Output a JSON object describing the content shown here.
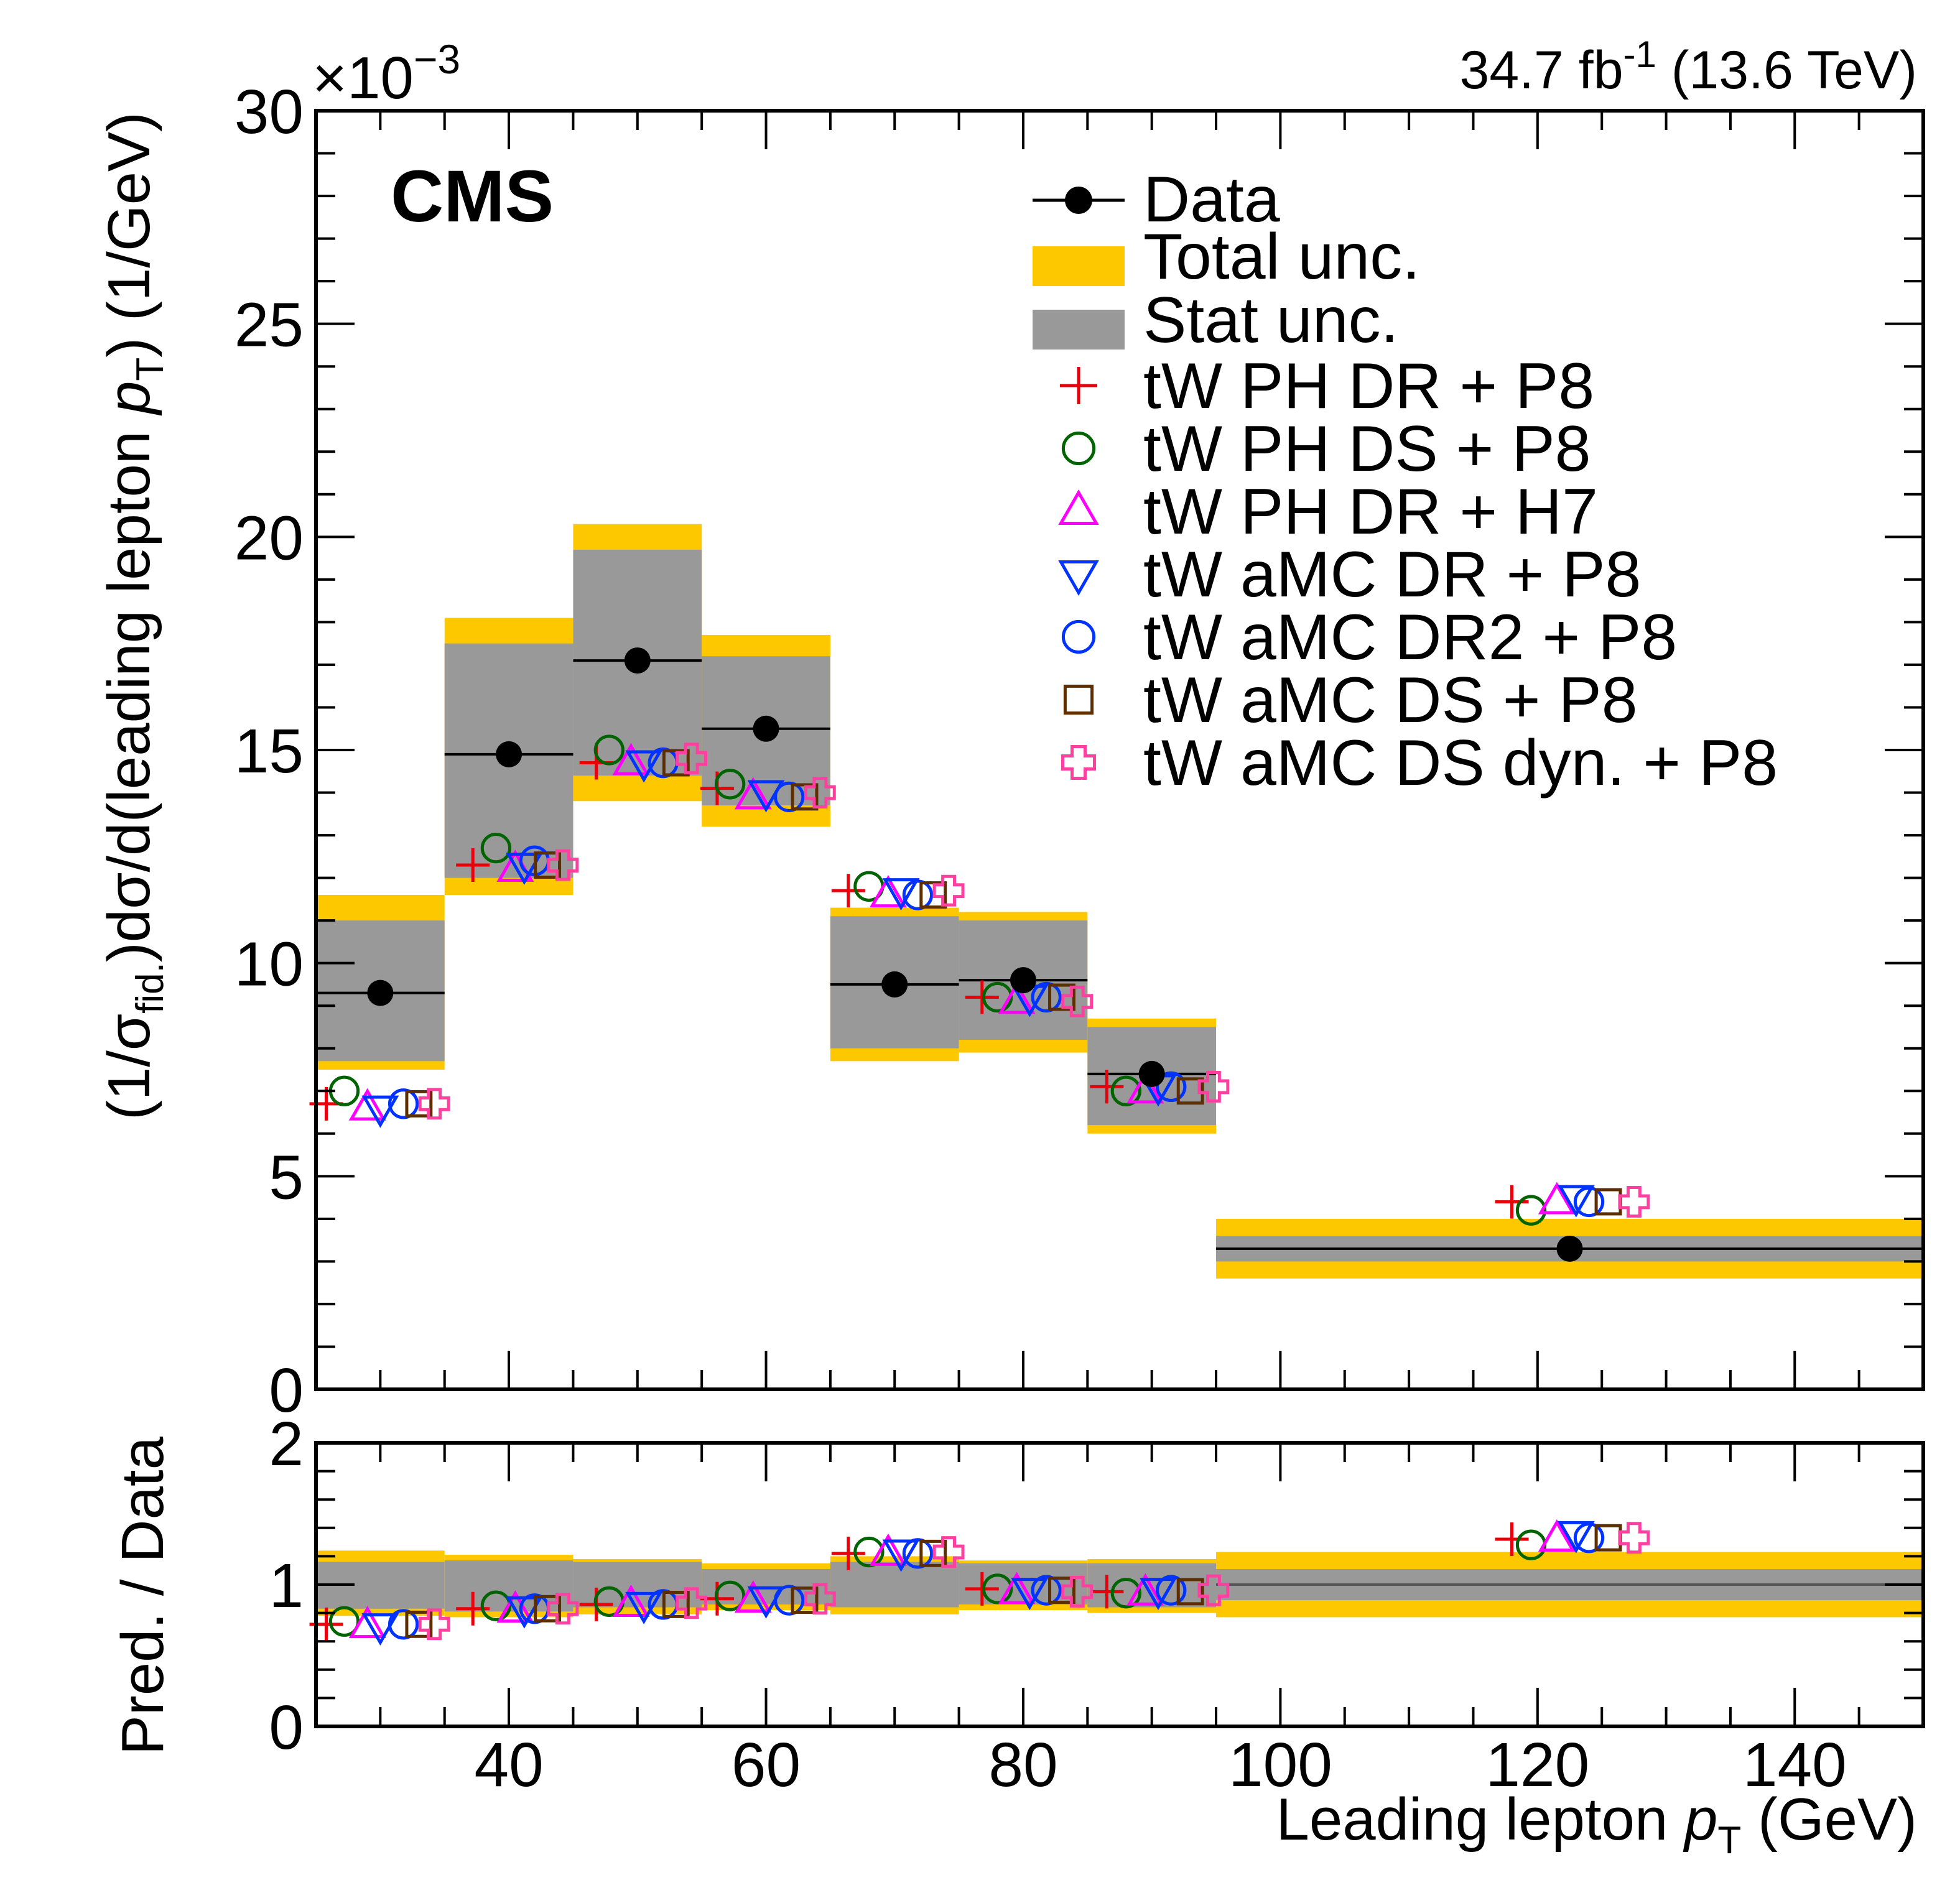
{
  "figure": {
    "experiment_label": "CMS",
    "lumi": {
      "value": "34.7",
      "unit_base": "fb",
      "unit_exp": "-1",
      "energy": "(13.6 TeV)"
    },
    "y_multiplier": {
      "base": "×10",
      "exp": "−3"
    },
    "upper_ylabel": {
      "p1": "(1/σ",
      "sub": "fid.",
      "p2": ")dσ/d(leading lepton ",
      "var": "p",
      "varsub": "T",
      "p3": ") (1/GeV)"
    },
    "lower_ylabel": "Pred. / Data",
    "xlabel": {
      "p1": "Leading lepton ",
      "var": "p",
      "varsub": "T",
      "p2": " (GeV)"
    }
  },
  "legend": {
    "data": "Data",
    "total_unc": "Total unc.",
    "stat_unc": "Stat unc.",
    "total_color": "#fdc800",
    "stat_color": "#999999"
  },
  "chart_data": {
    "type": "histogram-comparison",
    "bin_edges": [
      25,
      35,
      45,
      55,
      65,
      75,
      85,
      95,
      150
    ],
    "xlim": [
      25,
      150
    ],
    "x_ticks": [
      40,
      60,
      80,
      100,
      120,
      140
    ],
    "upper": {
      "ylim": [
        0,
        30
      ],
      "y_ticks": [
        0,
        5,
        10,
        15,
        20,
        25,
        30
      ],
      "y_scale_note": "×10^-3",
      "data": [
        9.3,
        14.9,
        17.1,
        15.5,
        9.5,
        9.6,
        7.4,
        3.3
      ],
      "data_centers": [
        30,
        40,
        50,
        60,
        70,
        80,
        90,
        122.5
      ],
      "total_unc": {
        "low": [
          7.5,
          11.6,
          13.8,
          13.2,
          7.7,
          7.9,
          6.0,
          2.6
        ],
        "high": [
          11.6,
          18.1,
          20.3,
          17.7,
          11.3,
          11.2,
          8.7,
          4.0
        ]
      },
      "stat_unc": {
        "low": [
          7.7,
          12.0,
          14.4,
          13.7,
          8.0,
          8.2,
          6.2,
          3.0
        ],
        "high": [
          11.0,
          17.5,
          19.7,
          17.2,
          11.1,
          11.0,
          8.5,
          3.6
        ]
      },
      "series": [
        {
          "name": "tW PH DR + P8",
          "marker": "plus",
          "color": "#e8000b",
          "x_offsets": [
            -4.2,
            -2.8,
            -3.2,
            -3.8,
            -3.6,
            -3.2,
            -3.5,
            -4.5
          ],
          "values": [
            6.7,
            12.3,
            14.7,
            14.1,
            11.7,
            9.2,
            7.1,
            4.4
          ]
        },
        {
          "name": "tW PH DS + P8",
          "marker": "circle",
          "color": "#006400",
          "x_offsets": [
            -2.8,
            -1.0,
            -2.2,
            -2.8,
            -2.0,
            -2.0,
            -2.0,
            -3.0
          ],
          "values": [
            7.0,
            12.7,
            15.0,
            14.2,
            11.8,
            9.2,
            7.0,
            4.2
          ]
        },
        {
          "name": "tW PH DR + H7",
          "marker": "triangle-up",
          "color": "#ff00ff",
          "x_offsets": [
            -1.0,
            0.5,
            -0.5,
            -1.0,
            -0.5,
            -0.5,
            -0.5,
            -1.0
          ],
          "values": [
            6.6,
            12.2,
            14.7,
            13.9,
            11.6,
            9.1,
            7.0,
            4.4
          ]
        },
        {
          "name": "tW aMC DR + P8",
          "marker": "triangle-down",
          "color": "#0033ff",
          "x_offsets": [
            0.0,
            1.2,
            0.5,
            0.0,
            0.5,
            0.5,
            0.5,
            0.5
          ],
          "values": [
            6.6,
            12.3,
            14.7,
            14.0,
            11.7,
            9.2,
            7.1,
            4.5
          ]
        },
        {
          "name": "tW aMC DR2 + P8",
          "marker": "circle",
          "color": "#0033ff",
          "x_offsets": [
            1.8,
            2.0,
            2.0,
            1.8,
            1.8,
            1.8,
            1.5,
            1.5
          ],
          "values": [
            6.7,
            12.4,
            14.7,
            13.9,
            11.6,
            9.2,
            7.1,
            4.4
          ]
        },
        {
          "name": "tW aMC DS + P8",
          "marker": "square",
          "color": "#5c2e00",
          "x_offsets": [
            3.0,
            3.0,
            3.0,
            3.0,
            3.0,
            3.0,
            3.0,
            3.0
          ],
          "values": [
            6.7,
            12.3,
            14.7,
            13.9,
            11.6,
            9.2,
            7.0,
            4.4
          ]
        },
        {
          "name": "tW aMC DS dyn. + P8",
          "marker": "cross",
          "color": "#ff40a0",
          "x_offsets": [
            4.2,
            4.2,
            4.2,
            4.2,
            4.2,
            4.2,
            4.8,
            5.0
          ],
          "values": [
            6.7,
            12.3,
            14.8,
            14.0,
            11.7,
            9.1,
            7.1,
            4.4
          ]
        }
      ]
    },
    "lower": {
      "ylim": [
        0,
        2
      ],
      "y_ticks": [
        0,
        1,
        2
      ],
      "total_unc": {
        "low": [
          0.78,
          0.77,
          0.79,
          0.82,
          0.79,
          0.82,
          0.8,
          0.77
        ],
        "high": [
          1.24,
          1.21,
          1.18,
          1.15,
          1.2,
          1.17,
          1.18,
          1.23
        ]
      },
      "stat_unc": {
        "low": [
          0.83,
          0.81,
          0.84,
          0.86,
          0.84,
          0.86,
          0.84,
          0.89
        ],
        "high": [
          1.16,
          1.17,
          1.16,
          1.11,
          1.16,
          1.15,
          1.15,
          1.11
        ]
      },
      "series": [
        {
          "name": "tW PH DR + P8",
          "values": [
            0.72,
            0.83,
            0.86,
            0.9,
            1.22,
            0.97,
            0.95,
            1.32
          ]
        },
        {
          "name": "tW PH DS + P8",
          "values": [
            0.74,
            0.85,
            0.88,
            0.92,
            1.23,
            0.97,
            0.94,
            1.28
          ]
        },
        {
          "name": "tW PH DR + H7",
          "values": [
            0.71,
            0.82,
            0.86,
            0.89,
            1.22,
            0.95,
            0.94,
            1.32
          ]
        },
        {
          "name": "tW aMC DR + P8",
          "values": [
            0.71,
            0.83,
            0.86,
            0.9,
            1.23,
            0.96,
            0.96,
            1.36
          ]
        },
        {
          "name": "tW aMC DR2 + P8",
          "values": [
            0.72,
            0.83,
            0.86,
            0.89,
            1.22,
            0.96,
            0.96,
            1.33
          ]
        },
        {
          "name": "tW aMC DS + P8",
          "values": [
            0.72,
            0.83,
            0.86,
            0.89,
            1.22,
            0.96,
            0.95,
            1.33
          ]
        },
        {
          "name": "tW aMC DS dyn. + P8",
          "values": [
            0.72,
            0.83,
            0.87,
            0.9,
            1.23,
            0.95,
            0.96,
            1.33
          ]
        }
      ]
    }
  }
}
